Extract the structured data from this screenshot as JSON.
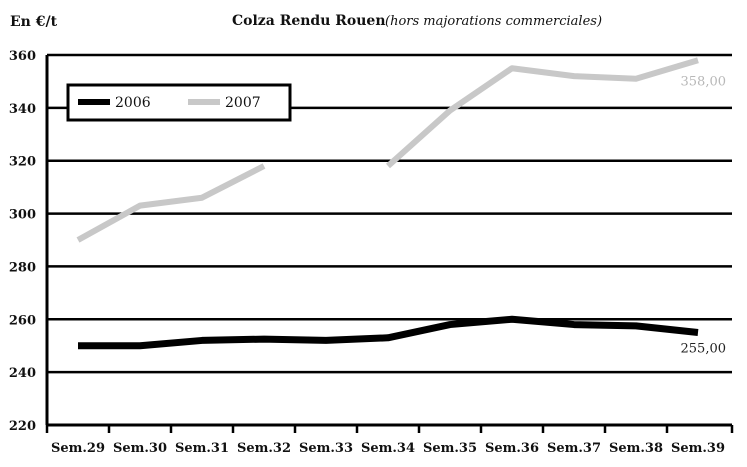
{
  "chart_data": {
    "type": "line",
    "title": "Colza Rendu Rouen",
    "subtitle": "(hors majorations commerciales)",
    "unit_label": "En €/t",
    "xlabel": "",
    "ylabel": "",
    "categories": [
      "Sem.29",
      "Sem.30",
      "Sem.31",
      "Sem.32",
      "Sem.33",
      "Sem.34",
      "Sem.35",
      "Sem.36",
      "Sem.37",
      "Sem.38",
      "Sem.39"
    ],
    "ylim": [
      220,
      360
    ],
    "yticks": [
      220,
      240,
      260,
      280,
      300,
      320,
      340,
      360
    ],
    "grid": true,
    "legend_position": "top-left",
    "series": [
      {
        "name": "2006",
        "color": "#000000",
        "values": [
          250,
          250,
          252,
          252.5,
          252,
          253,
          258,
          260,
          258,
          257.5,
          255
        ]
      },
      {
        "name": "2007",
        "color": "#c8c8c8",
        "values": [
          290,
          303,
          306,
          318,
          null,
          318,
          339,
          355,
          352,
          351,
          358
        ]
      }
    ],
    "annotations": [
      {
        "series": "2006",
        "category": "Sem.39",
        "text": "255,00"
      },
      {
        "series": "2007",
        "category": "Sem.39",
        "text": "358,00"
      }
    ]
  }
}
